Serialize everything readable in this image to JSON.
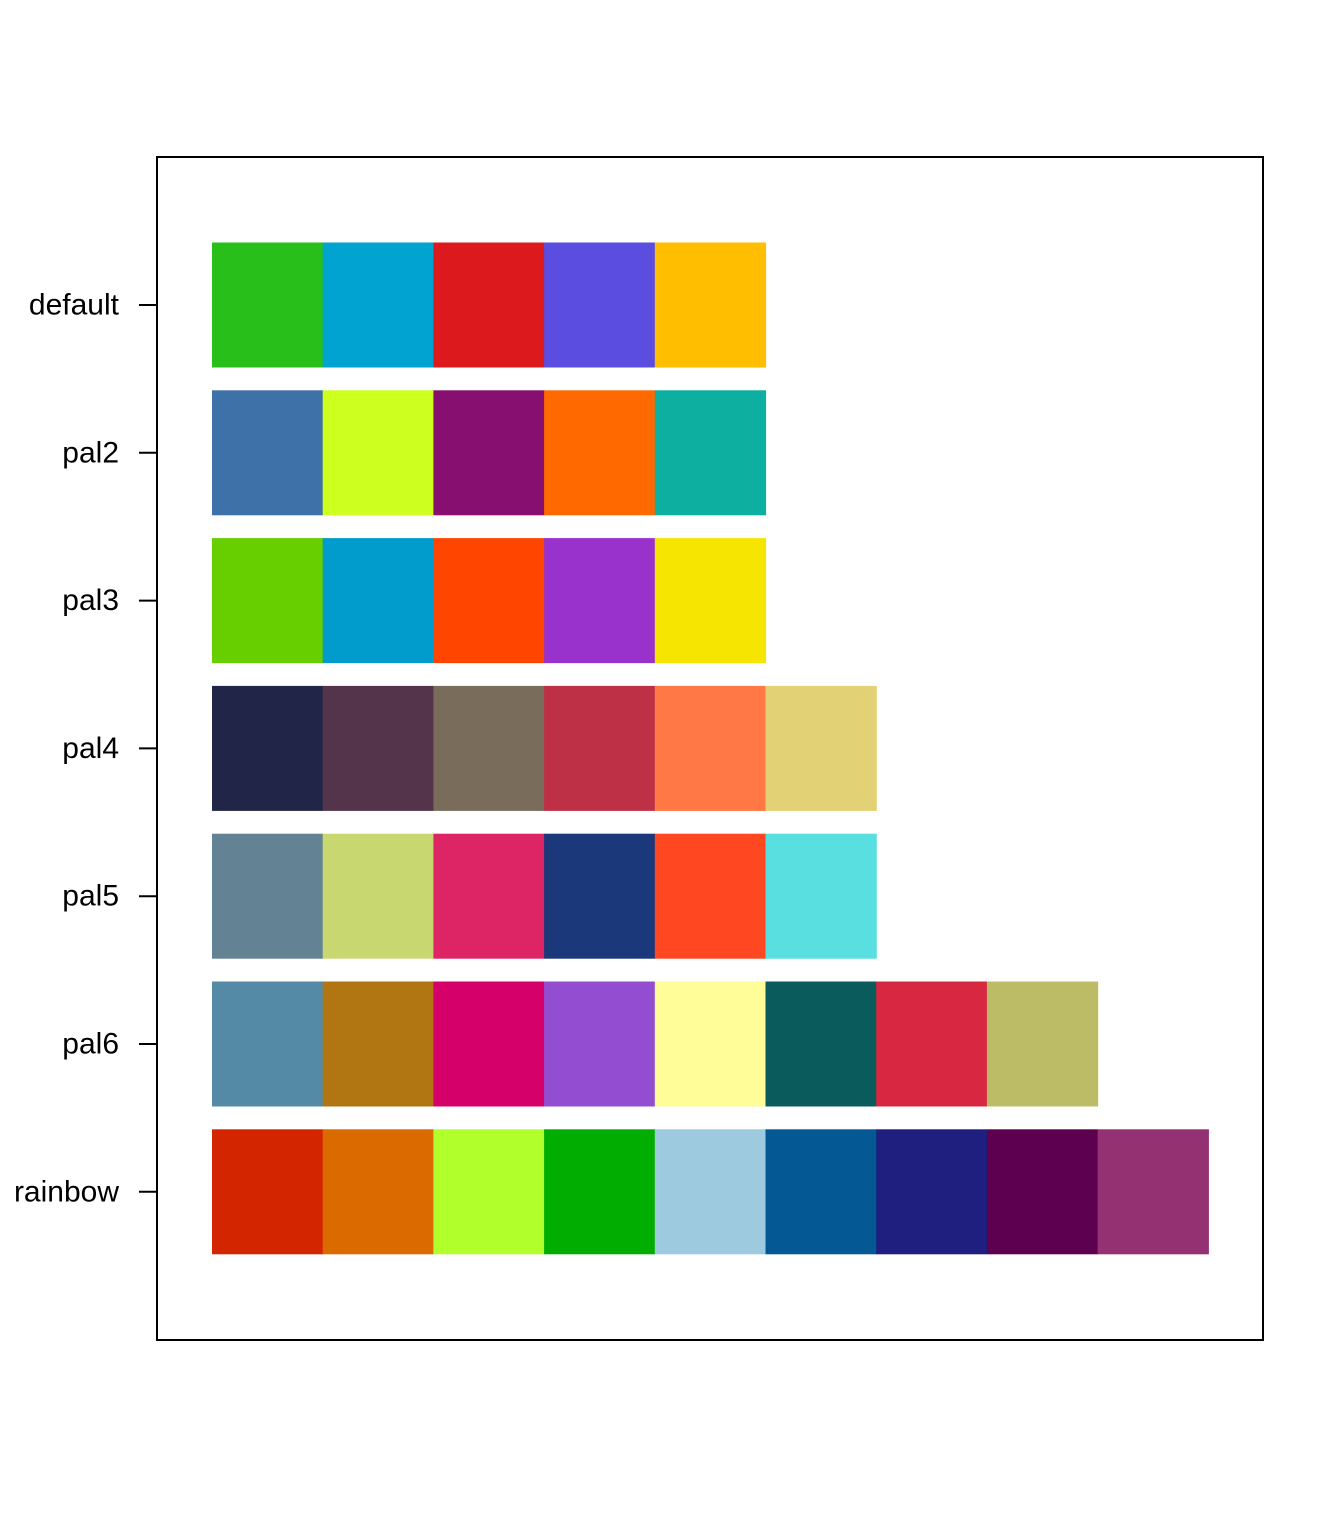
{
  "chart_data": {
    "type": "heatmap",
    "title": "",
    "xlabel": "",
    "ylabel": "",
    "grid": false,
    "rows": [
      {
        "label": "default",
        "colors": [
          "#29BF1A",
          "#01A3D0",
          "#DC1A1E",
          "#5A4DE0",
          "#FFBE00"
        ]
      },
      {
        "label": "pal2",
        "colors": [
          "#3E71A8",
          "#CDFF1F",
          "#860F70",
          "#FF6900",
          "#0CAFA0"
        ]
      },
      {
        "label": "pal3",
        "colors": [
          "#67CE00",
          "#019BCC",
          "#FF4500",
          "#9932CC",
          "#F5E500"
        ]
      },
      {
        "label": "pal4",
        "colors": [
          "#212649",
          "#53344A",
          "#7A6C5B",
          "#BE3045",
          "#FF7845",
          "#E3D275"
        ]
      },
      {
        "label": "pal5",
        "colors": [
          "#638395",
          "#C8D770",
          "#DD2565",
          "#1A387A",
          "#FF4722",
          "#59DFE0"
        ]
      },
      {
        "label": "pal6",
        "colors": [
          "#558AA6",
          "#B17512",
          "#D5006A",
          "#924DD1",
          "#FFFD97",
          "#0A5B5C",
          "#D72741",
          "#BCBC67"
        ]
      },
      {
        "label": "rainbow",
        "colors": [
          "#D32500",
          "#DB6A00",
          "#B1FF2B",
          "#00AD00",
          "#9ECAE0",
          "#045995",
          "#1F1F80",
          "#5C004F",
          "#943172"
        ]
      }
    ]
  }
}
